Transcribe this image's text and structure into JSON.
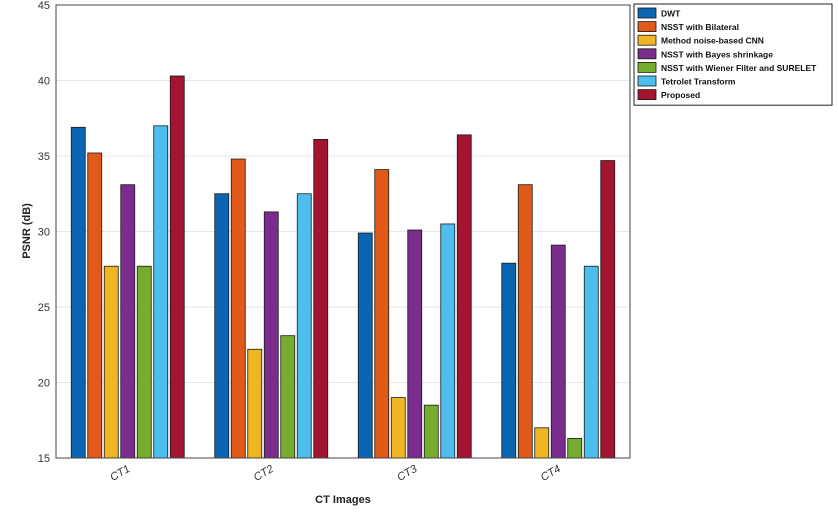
{
  "chart_data": {
    "type": "bar",
    "title": "",
    "xlabel": "CT Images",
    "ylabel": "PSNR (dB)",
    "ylim": [
      15,
      45
    ],
    "yticks": [
      15,
      20,
      25,
      30,
      35,
      40,
      45
    ],
    "grid": true,
    "legend_position": "top-right",
    "categories": [
      "CT1",
      "CT2",
      "CT3",
      "CT4"
    ],
    "series": [
      {
        "name": "DWT",
        "color": "#0a66b3",
        "values": [
          36.9,
          32.5,
          29.9,
          27.9
        ]
      },
      {
        "name": "NSST with Bilateral",
        "color": "#e05a1a",
        "values": [
          35.2,
          34.8,
          34.1,
          33.1
        ]
      },
      {
        "name": "Method noise-based CNN",
        "color": "#efb522",
        "values": [
          27.7,
          22.2,
          19.0,
          17.0
        ]
      },
      {
        "name": "NSST with Bayes shrinkage",
        "color": "#7b2d8e",
        "values": [
          33.1,
          31.3,
          30.1,
          29.1
        ]
      },
      {
        "name": "NSST with Wiener Filter and SURELET",
        "color": "#77ac30",
        "values": [
          27.7,
          23.1,
          18.5,
          16.3
        ]
      },
      {
        "name": "Tetrolet Transform",
        "color": "#4dbeee",
        "values": [
          37.0,
          32.5,
          30.5,
          27.7
        ]
      },
      {
        "name": "Proposed",
        "color": "#a2142f",
        "values": [
          40.3,
          36.1,
          36.4,
          34.7
        ]
      }
    ]
  }
}
